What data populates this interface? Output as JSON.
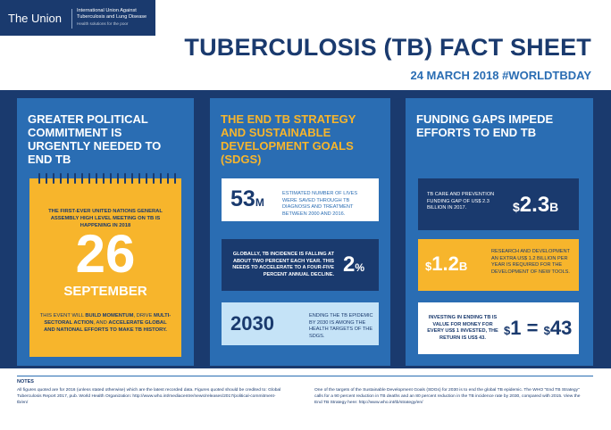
{
  "logo": {
    "name": "The Union",
    "line1": "International Union Against",
    "line2": "Tuberculosis and Lung Disease",
    "tagline": "Health solutions for the poor"
  },
  "header": {
    "title": "TUBERCULOSIS (TB) FACT SHEET",
    "date": "24 MARCH 2018 #WORLDTBDAY"
  },
  "col1": {
    "title": "GREATER POLITICAL COMMITMENT IS URGENTLY NEEDED TO END TB",
    "calendar": {
      "intro": "THE FIRST-EVER UNITED NATIONS GENERAL ASSEMBLY HIGH LEVEL MEETING ON TB IS HAPPENING IN 2018",
      "day": "26",
      "month": "SEPTEMBER",
      "body_1": "THIS EVENT WILL ",
      "body_2": "BUILD MOMENTUM",
      "body_3": ", DRIVE ",
      "body_4": "MULTI-SECTORAL ACTION",
      "body_5": ", AND ",
      "body_6": "ACCELERATE GLOBAL AND NATIONAL EFFORTS TO MAKE TB HISTORY."
    }
  },
  "col2": {
    "title": "THE END TB STRATEGY AND SUSTAINABLE DEVELOPMENT GOALS (SDGS)",
    "card1": {
      "value": "53",
      "unit": "M",
      "text": "ESTIMATED NUMBER OF LIVES WERE SAVED THROUGH TB DIAGNOSIS AND TREATMENT BETWEEN 2000 AND 2016."
    },
    "card2": {
      "text": "GLOBALLY, TB INCIDENCE IS FALLING AT ABOUT TWO PERCENT EACH YEAR. THIS NEEDS TO ACCELERATE TO A FOUR-FIVE PERCENT ANNUAL DECLINE.",
      "value": "2",
      "unit": "%"
    },
    "card3": {
      "value": "2030",
      "text": "ENDING THE TB EPIDEMIC BY 2030 IS AMONG THE HEALTH TARGETS OF THE SDGS."
    }
  },
  "col3": {
    "title": "FUNDING GAPS IMPEDE EFFORTS TO END TB",
    "card1": {
      "text": "TB CARE AND PREVENTION FUNDING GAP OF US$ 2.3 BILLION IN 2017.",
      "currency": "$",
      "value": "2.3",
      "unit": "B"
    },
    "card2": {
      "currency": "$",
      "value": "1.2",
      "unit": "B",
      "text": "RESEARCH AND DEVELOPMENT AN EXTRA US$ 1.2 BILLION PER YEAR IS REQUIRED FOR THE DEVELOPMENT OF NEW TOOLS."
    },
    "card3": {
      "text": "INVESTING IN ENDING TB IS VALUE FOR MONEY FOR EVERY US$ 1 INVESTED, THE RETURN IS US$ 43.",
      "currency_a": "$",
      "value_a": "1",
      "equals": "=",
      "currency_b": "$",
      "value_b": "43"
    }
  },
  "notes": {
    "heading": "NOTES",
    "left": "All figures quoted are for 2016 (unless stated otherwise) which are the latest recorded data. Figures quoted should be credited to: Global Tuberculosis Report 2017, pub. World Health Organization: http://www.who.int/mediacentre/news/releases/2017/political-commitment-tb/en/",
    "right": "One of the targets of the Sustainable Development Goals (SDGs) for 2030 is to end the global TB epidemic. The WHO \"End TB Strategy\" calls for a 90 percent reduction in TB deaths and an 80 percent reduction in the TB incidence rate by 2030, compared with 2015. View the End TB Strategy here: http://www.who.int/tb/strategy/en/"
  },
  "colors": {
    "navy": "#1a3a6e",
    "blue": "#2a6db3",
    "yellow": "#f7b52c",
    "light_blue": "#c5e3f7"
  }
}
